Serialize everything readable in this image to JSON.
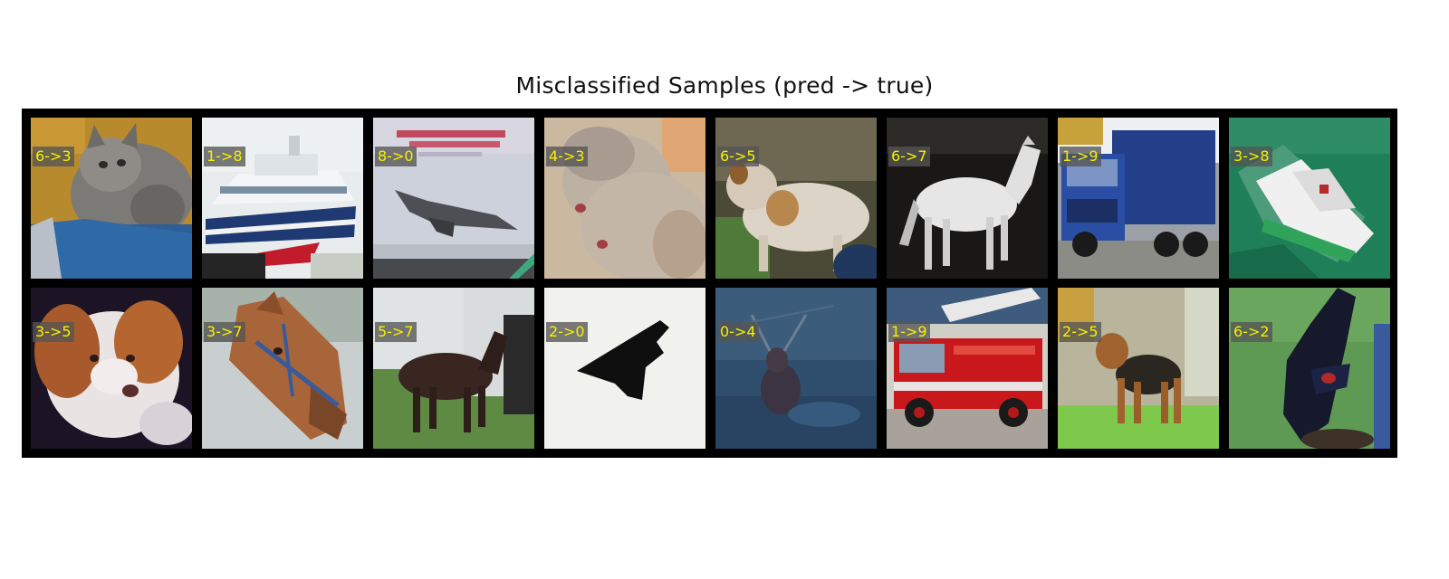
{
  "title": "Misclassified Samples (pred -> true)",
  "label_color": "#f5f100",
  "samples": [
    {
      "row": 1,
      "label": "6->3",
      "content": "cat"
    },
    {
      "row": 1,
      "label": "1->8",
      "content": "ship"
    },
    {
      "row": 1,
      "label": "8->0",
      "content": "airplane"
    },
    {
      "row": 1,
      "label": "4->3",
      "content": "cat"
    },
    {
      "row": 1,
      "label": "6->5",
      "content": "dog"
    },
    {
      "row": 1,
      "label": "6->7",
      "content": "horse"
    },
    {
      "row": 1,
      "label": "1->9",
      "content": "truck"
    },
    {
      "row": 1,
      "label": "3->8",
      "content": "ship"
    },
    {
      "row": 2,
      "label": "3->5",
      "content": "dog"
    },
    {
      "row": 2,
      "label": "3->7",
      "content": "horse"
    },
    {
      "row": 2,
      "label": "5->7",
      "content": "horse"
    },
    {
      "row": 2,
      "label": "2->0",
      "content": "airplane"
    },
    {
      "row": 2,
      "label": "0->4",
      "content": "deer"
    },
    {
      "row": 2,
      "label": "1->9",
      "content": "truck"
    },
    {
      "row": 2,
      "label": "2->5",
      "content": "dog"
    },
    {
      "row": 2,
      "label": "6->2",
      "content": "bird"
    }
  ]
}
